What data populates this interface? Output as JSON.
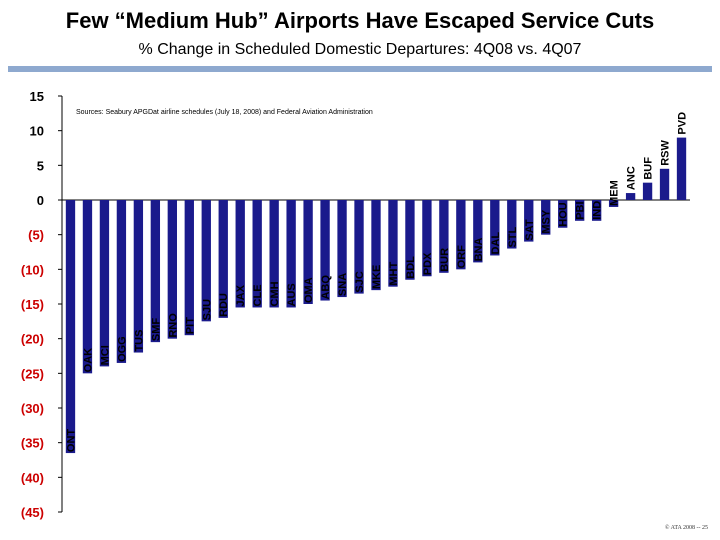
{
  "title": "Few “Medium Hub” Airports Have Escaped Service Cuts",
  "subtitle": "% Change in Scheduled Domestic Departures: 4Q08 vs. 4Q07",
  "source_note": "Sources: Seabury APGDat airline schedules (July 18, 2008) and Federal Aviation Administration",
  "copyright": "© ATA 2008 -- 25",
  "colors": {
    "bar": "#1a1a8c",
    "negative_tick": "#cc0000",
    "positive_tick": "#000000",
    "rule": "#8ea9cf"
  },
  "chart_data": {
    "type": "bar",
    "title": "Few “Medium Hub” Airports Have Escaped Service Cuts",
    "subtitle": "% Change in Scheduled Domestic Departures: 4Q08 vs. 4Q07",
    "xlabel": "",
    "ylabel": "",
    "ylim": [
      -45,
      15
    ],
    "yticks": [
      15,
      10,
      5,
      0,
      -5,
      -10,
      -15,
      -20,
      -25,
      -30,
      -35,
      -40,
      -45
    ],
    "ytick_labels": [
      "15",
      "10",
      "5",
      "0",
      "(5)",
      "(10)",
      "(15)",
      "(20)",
      "(25)",
      "(30)",
      "(35)",
      "(40)",
      "(45)"
    ],
    "grid": false,
    "categories": [
      "ONT",
      "OAK",
      "MCI",
      "OGG",
      "TUS",
      "SMF",
      "RNO",
      "PIT",
      "SJU",
      "RDU",
      "JAX",
      "CLE",
      "CMH",
      "AUS",
      "OMA",
      "ABQ",
      "SNA",
      "SJC",
      "MKE",
      "MHT",
      "BDL",
      "PDX",
      "BUR",
      "ORF",
      "BNA",
      "DAL",
      "STL",
      "SAT",
      "MSY",
      "HOU",
      "PBI",
      "IND",
      "MEM",
      "ANC",
      "BUF",
      "RSW",
      "PVD"
    ],
    "values": [
      -36.5,
      -25,
      -24,
      -23.5,
      -22,
      -20.5,
      -20,
      -19.5,
      -17.5,
      -17,
      -15.5,
      -15.5,
      -15.5,
      -15.5,
      -15,
      -14.5,
      -14,
      -13.5,
      -13,
      -12.5,
      -11.5,
      -11,
      -10.5,
      -10,
      -9,
      -8,
      -7,
      -6,
      -5,
      -4,
      -3,
      -3,
      -1,
      1,
      2.5,
      4.5,
      9
    ]
  }
}
